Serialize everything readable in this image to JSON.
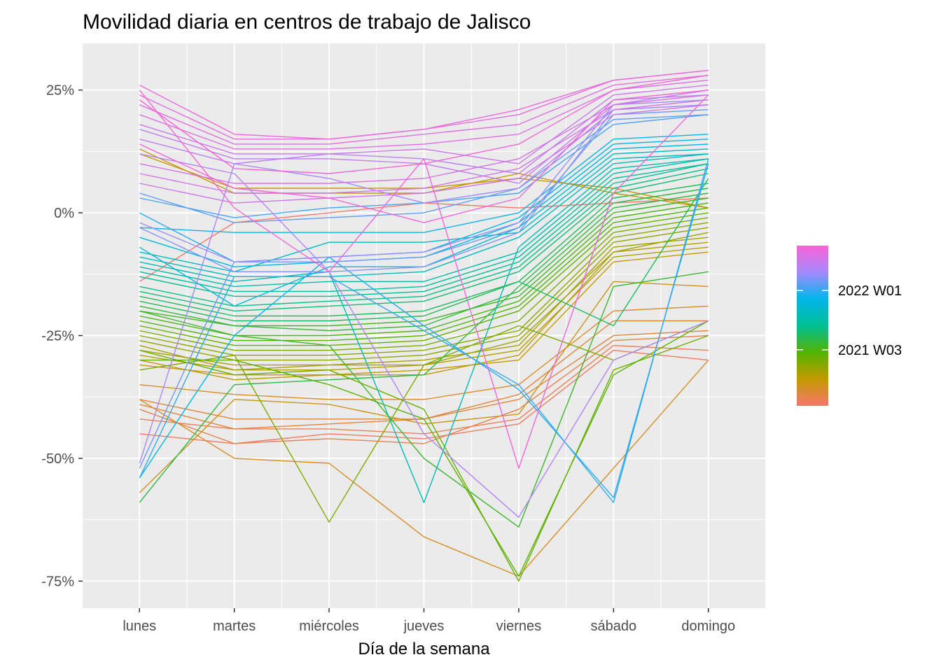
{
  "chart_data": {
    "type": "line",
    "title": "Movilidad diaria en centros de trabajo de Jalisco",
    "xlabel": "Día de la semana",
    "ylabel": "",
    "categories": [
      "lunes",
      "martes",
      "miércoles",
      "jueves",
      "viernes",
      "sábado",
      "domingo"
    ],
    "y_ticks": [
      {
        "value": 25,
        "label": "25%"
      },
      {
        "value": 0,
        "label": "0%"
      },
      {
        "value": -25,
        "label": "-25%"
      },
      {
        "value": -50,
        "label": "-50%"
      },
      {
        "value": -75,
        "label": "-75%"
      }
    ],
    "ylim": [
      -80.5,
      34.5
    ],
    "grid": true,
    "legend": {
      "position": "right",
      "type": "colorbar",
      "labels": [
        {
          "label": "2022 W01",
          "fraction": 0.72
        },
        {
          "label": "2021 W03",
          "fraction": 0.35
        }
      ],
      "colors": [
        "#F8766D",
        "#C49A00",
        "#53B400",
        "#00C094",
        "#00B6EB",
        "#A58AFF",
        "#FB61D7"
      ]
    },
    "series": [
      {
        "week_fraction": 0.0,
        "values": [
          -14,
          -2,
          0,
          2,
          1,
          2,
          3
        ]
      },
      {
        "week_fraction": 0.02,
        "values": [
          -45,
          -47,
          -45,
          -46,
          -43,
          -28,
          -30
        ]
      },
      {
        "week_fraction": 0.04,
        "values": [
          -42,
          -44,
          -44,
          -45,
          -42,
          -27,
          -28
        ]
      },
      {
        "week_fraction": 0.05,
        "values": [
          -40,
          -47,
          -46,
          -47,
          -40,
          -26,
          -25
        ]
      },
      {
        "week_fraction": 0.07,
        "values": [
          -39,
          -44,
          -43,
          -42,
          -38,
          -25,
          -24
        ]
      },
      {
        "week_fraction": 0.08,
        "values": [
          -38,
          -42,
          -42,
          -42,
          -37,
          -22,
          -22
        ]
      },
      {
        "week_fraction": 0.1,
        "values": [
          -35,
          -37,
          -38,
          -38,
          -35,
          -20,
          -19
        ]
      },
      {
        "week_fraction": 0.11,
        "values": [
          -38,
          -50,
          -51,
          -66,
          -74,
          -52,
          -30
        ]
      },
      {
        "week_fraction": 0.13,
        "values": [
          -57,
          -38,
          -39,
          -43,
          -41,
          -14,
          -15
        ]
      },
      {
        "week_fraction": 0.14,
        "values": [
          12,
          5,
          5,
          5,
          7,
          5,
          1
        ]
      },
      {
        "week_fraction": 0.15,
        "values": [
          13,
          4,
          4,
          4,
          8,
          4,
          1
        ]
      },
      {
        "week_fraction": 0.16,
        "values": [
          -31,
          -33,
          -33,
          -32,
          -30,
          -10,
          -8
        ]
      },
      {
        "week_fraction": 0.18,
        "values": [
          -30,
          -34,
          -33,
          -33,
          -29,
          -8,
          -6
        ]
      },
      {
        "week_fraction": 0.19,
        "values": [
          -29,
          -32,
          -32,
          -31,
          -28,
          -9,
          -7
        ]
      },
      {
        "week_fraction": 0.21,
        "values": [
          -28,
          -31,
          -31,
          -30,
          -27,
          -7,
          -5
        ]
      },
      {
        "week_fraction": 0.22,
        "values": [
          -27,
          -32,
          -31,
          -31,
          -26,
          -8,
          -4
        ]
      },
      {
        "week_fraction": 0.24,
        "values": [
          -26,
          -30,
          -30,
          -29,
          -25,
          -6,
          -3
        ]
      },
      {
        "week_fraction": 0.25,
        "values": [
          -25,
          -29,
          -29,
          -28,
          -24,
          -5,
          -2
        ]
      },
      {
        "week_fraction": 0.27,
        "values": [
          -32,
          -29,
          -63,
          -31,
          -23,
          -30,
          -22
        ]
      },
      {
        "week_fraction": 0.28,
        "values": [
          -24,
          -28,
          -28,
          -27,
          -22,
          -4,
          -1
        ]
      },
      {
        "week_fraction": 0.3,
        "values": [
          -28,
          -33,
          -32,
          -40,
          -75,
          -32,
          -25
        ]
      },
      {
        "week_fraction": 0.31,
        "values": [
          -23,
          -27,
          -27,
          -26,
          -20,
          -3,
          0
        ]
      },
      {
        "week_fraction": 0.32,
        "values": [
          -30,
          -30,
          -35,
          -42,
          -74,
          -33,
          -22
        ]
      },
      {
        "week_fraction": 0.34,
        "values": [
          -22,
          -26,
          -26,
          -25,
          -19,
          -2,
          1
        ]
      },
      {
        "week_fraction": 0.35,
        "values": [
          -21,
          -25,
          -25,
          -24,
          -18,
          -1,
          2
        ]
      },
      {
        "week_fraction": 0.37,
        "values": [
          -20,
          -23,
          -23,
          -22,
          -17,
          0,
          3
        ]
      },
      {
        "week_fraction": 0.38,
        "values": [
          -20,
          -25,
          -27,
          -50,
          -64,
          -15,
          -12
        ]
      },
      {
        "week_fraction": 0.4,
        "values": [
          -19,
          -23,
          -24,
          -23,
          -16,
          1,
          4
        ]
      },
      {
        "week_fraction": 0.41,
        "values": [
          -59,
          -35,
          -34,
          -33,
          -15,
          2,
          5
        ]
      },
      {
        "week_fraction": 0.43,
        "values": [
          -18,
          -22,
          -22,
          -21,
          -14,
          3,
          6
        ]
      },
      {
        "week_fraction": 0.44,
        "values": [
          -17,
          -21,
          -21,
          -20,
          -14,
          -23,
          7
        ]
      },
      {
        "week_fraction": 0.46,
        "values": [
          -16,
          -20,
          -19,
          -18,
          -12,
          4,
          8
        ]
      },
      {
        "week_fraction": 0.48,
        "values": [
          -15,
          -19,
          -18,
          -17,
          -11,
          5,
          9
        ]
      },
      {
        "week_fraction": 0.5,
        "values": [
          -13,
          -17,
          -17,
          -16,
          -10,
          6,
          10
        ]
      },
      {
        "week_fraction": 0.52,
        "values": [
          -12,
          -16,
          -16,
          -15,
          -9,
          7,
          10
        ]
      },
      {
        "week_fraction": 0.54,
        "values": [
          -11,
          -15,
          -14,
          -14,
          -8,
          8,
          11
        ]
      },
      {
        "week_fraction": 0.56,
        "values": [
          -10,
          -14,
          -12,
          -59,
          -7,
          9,
          11
        ]
      },
      {
        "week_fraction": 0.58,
        "values": [
          -9,
          -13,
          -13,
          -12,
          -5,
          10,
          12
        ]
      },
      {
        "week_fraction": 0.6,
        "values": [
          -8,
          -12,
          -6,
          -6,
          -4,
          11,
          12
        ]
      },
      {
        "week_fraction": 0.62,
        "values": [
          -7,
          -19,
          -11,
          -11,
          -3,
          12,
          13
        ]
      },
      {
        "week_fraction": 0.64,
        "values": [
          -5,
          -11,
          -10,
          -9,
          -2,
          13,
          14
        ]
      },
      {
        "week_fraction": 0.66,
        "values": [
          -54,
          -25,
          -9,
          -8,
          -1,
          14,
          15
        ]
      },
      {
        "week_fraction": 0.68,
        "values": [
          -3,
          -4,
          -4,
          -4,
          0,
          15,
          16
        ]
      },
      {
        "week_fraction": 0.7,
        "values": [
          0,
          -10,
          -9,
          -23,
          -36,
          -58,
          10
        ]
      },
      {
        "week_fraction": 0.72,
        "values": [
          -54,
          -13,
          -13,
          -24,
          -35,
          -59,
          11
        ]
      },
      {
        "week_fraction": 0.74,
        "values": [
          3,
          -1,
          1,
          2,
          4,
          18,
          20
        ]
      },
      {
        "week_fraction": 0.76,
        "values": [
          4,
          -2,
          -1,
          0,
          5,
          19,
          20
        ]
      },
      {
        "week_fraction": 0.78,
        "values": [
          -52,
          -10,
          -10,
          -9,
          -3,
          20,
          21
        ]
      },
      {
        "week_fraction": 0.8,
        "values": [
          -3,
          -12,
          -12,
          -11,
          -4,
          21,
          22
        ]
      },
      {
        "week_fraction": 0.82,
        "values": [
          -2,
          -10,
          -9,
          -8,
          -2,
          22,
          23
        ]
      },
      {
        "week_fraction": 0.84,
        "values": [
          -51,
          10,
          7,
          2,
          5,
          21,
          22
        ]
      },
      {
        "week_fraction": 0.86,
        "values": [
          12,
          8,
          -12,
          -45,
          -62,
          -30,
          -22
        ]
      },
      {
        "week_fraction": 0.88,
        "values": [
          15,
          10,
          12,
          11,
          8,
          23,
          24
        ]
      },
      {
        "week_fraction": 0.89,
        "values": [
          17,
          11,
          11,
          10,
          6,
          22,
          25
        ]
      },
      {
        "week_fraction": 0.9,
        "values": [
          18,
          12,
          12,
          13,
          10,
          24,
          26
        ]
      },
      {
        "week_fraction": 0.91,
        "values": [
          6,
          2,
          3,
          4,
          7,
          20,
          22
        ]
      },
      {
        "week_fraction": 0.92,
        "values": [
          8,
          4,
          4,
          5,
          9,
          21,
          23
        ]
      },
      {
        "week_fraction": 0.93,
        "values": [
          10,
          6,
          6,
          7,
          11,
          22,
          24
        ]
      },
      {
        "week_fraction": 0.94,
        "values": [
          20,
          13,
          13,
          14,
          16,
          25,
          27
        ]
      },
      {
        "week_fraction": 0.95,
        "values": [
          22,
          14,
          14,
          16,
          18,
          26,
          28
        ]
      },
      {
        "week_fraction": 0.96,
        "values": [
          24,
          15,
          15,
          17,
          20,
          27,
          29
        ]
      },
      {
        "week_fraction": 0.97,
        "values": [
          26,
          16,
          15,
          17,
          21,
          27,
          29
        ]
      },
      {
        "week_fraction": 0.98,
        "values": [
          25,
          1,
          -12,
          11,
          -52,
          4,
          24
        ]
      },
      {
        "week_fraction": 0.99,
        "values": [
          14,
          5,
          3,
          -2,
          3,
          23,
          25
        ]
      },
      {
        "week_fraction": 1.0,
        "values": [
          23,
          9,
          8,
          10,
          14,
          25,
          28
        ]
      }
    ]
  }
}
